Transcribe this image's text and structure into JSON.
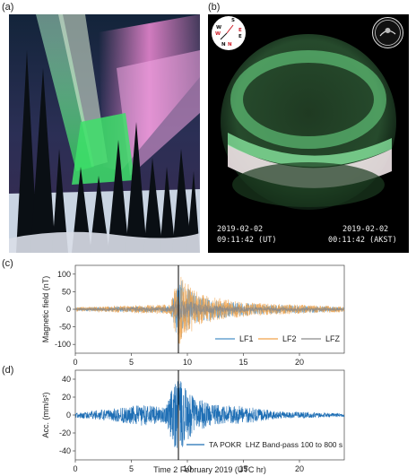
{
  "panels": {
    "a": "(a)",
    "b": "(b)",
    "c": "(c)",
    "d": "(d)"
  },
  "allsky": {
    "compass": {
      "S": "S",
      "E1": "E",
      "E2": "E",
      "W1": "W",
      "W2": "W",
      "N1": "N",
      "N2": "N"
    },
    "date_left": "2019-02-02",
    "time_left": "09:11:42 (UT)",
    "date_right": "2019-02-02",
    "time_right": "00:11:42 (AKST)"
  },
  "colors": {
    "lf1": "#4a90c8",
    "lf2": "#f0a24a",
    "lfz": "#8a8a8a",
    "accel": "#1f6fb5",
    "marker": "#000000"
  },
  "chart_data": [
    {
      "type": "line",
      "xlabel": "",
      "ylabel": "Magnetic field (nT)",
      "xlim": [
        0,
        24
      ],
      "ylim": [
        -125,
        125
      ],
      "xticks": [
        "0",
        "5",
        "10",
        "15",
        "20"
      ],
      "yticks": [
        "100",
        "50",
        "0",
        "-50",
        "-100"
      ],
      "event_marker_x": 9.2,
      "legend": "bottom-right",
      "series": [
        {
          "name": "LF1",
          "amplitude_envelope": [
            [
              0,
              5
            ],
            [
              8.5,
              10
            ],
            [
              9.2,
              95
            ],
            [
              10,
              60
            ],
            [
              11,
              40
            ],
            [
              13,
              25
            ],
            [
              16,
              15
            ],
            [
              24,
              6
            ]
          ]
        },
        {
          "name": "LF2",
          "amplitude_envelope": [
            [
              0,
              6
            ],
            [
              8.5,
              14
            ],
            [
              9.2,
              110
            ],
            [
              10,
              75
            ],
            [
              11,
              45
            ],
            [
              13,
              30
            ],
            [
              16,
              18
            ],
            [
              24,
              8
            ]
          ]
        },
        {
          "name": "LFZ",
          "amplitude_envelope": [
            [
              0,
              3
            ],
            [
              8.5,
              6
            ],
            [
              9.2,
              35
            ],
            [
              10,
              25
            ],
            [
              11,
              15
            ],
            [
              13,
              10
            ],
            [
              16,
              6
            ],
            [
              24,
              3
            ]
          ]
        }
      ]
    },
    {
      "type": "line",
      "xlabel": "Time 2 February 2019 (UTC hr)",
      "ylabel": "Acc. (mm/s²)",
      "xlim": [
        0,
        24
      ],
      "ylim": [
        -50,
        50
      ],
      "xticks": [
        "0",
        "5",
        "10",
        "15",
        "20"
      ],
      "yticks": [
        "40",
        "20",
        "0",
        "-20",
        "-40"
      ],
      "event_marker_x": 9.2,
      "legend": "bottom-right",
      "series": [
        {
          "name": "TA POKR  LHZ Band-pass 100 to 800 s",
          "amplitude_envelope": [
            [
              0,
              3
            ],
            [
              4,
              8
            ],
            [
              6,
              12
            ],
            [
              8,
              8
            ],
            [
              9.1,
              45
            ],
            [
              9.6,
              35
            ],
            [
              10.5,
              22
            ],
            [
              12,
              12
            ],
            [
              15,
              10
            ],
            [
              18,
              4
            ],
            [
              24,
              2
            ]
          ]
        }
      ]
    }
  ]
}
